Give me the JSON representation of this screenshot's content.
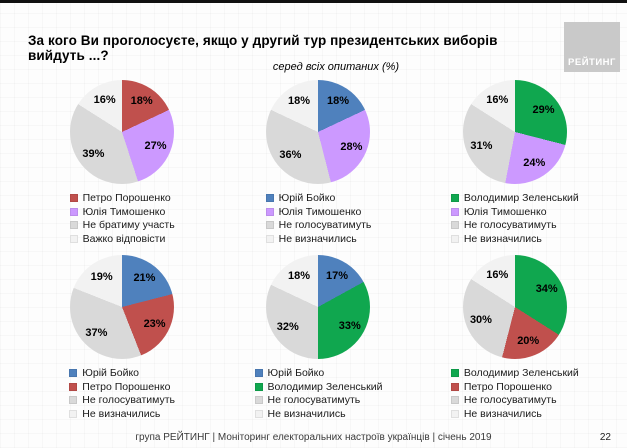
{
  "title": "За кого Ви проголосуєте, якщо у другий тур президентських виборів вийдуть ...?",
  "subtitle": "серед всіх опитаних (%)",
  "logo_text": "РЕЙТИНГ",
  "footer": {
    "left": "група РЕЙТИНГ |  Моніторинг електоральних настроїв українців  |  січень  2019",
    "page": "22"
  },
  "colors": {
    "poroshenko_red": "#C0504D",
    "tymoshenko_purple": "#CC99FF",
    "boyko_blue": "#4F81BD",
    "zelensky_green": "#10A74F",
    "no_vote_gray": "#D9D9D9",
    "undecided_light_gray": "#F2F2F2"
  },
  "chart_data": [
    {
      "type": "pie",
      "legend_position": "bottom",
      "slices": [
        {
          "label": "Петро Порошенко",
          "value": 18,
          "color": "#C0504D"
        },
        {
          "label": "Юлія Тимошенко",
          "value": 27,
          "color": "#CC99FF"
        },
        {
          "label": "Не братиму участь",
          "value": 39,
          "color": "#D9D9D9"
        },
        {
          "label": "Важко відповісти",
          "value": 16,
          "color": "#F2F2F2"
        }
      ]
    },
    {
      "type": "pie",
      "legend_position": "bottom",
      "slices": [
        {
          "label": "Юрій Бойко",
          "value": 18,
          "color": "#4F81BD"
        },
        {
          "label": "Юлія Тимошенко",
          "value": 28,
          "color": "#CC99FF"
        },
        {
          "label": "Не голосуватимуть",
          "value": 36,
          "color": "#D9D9D9"
        },
        {
          "label": "Не визначились",
          "value": 18,
          "color": "#F2F2F2"
        }
      ]
    },
    {
      "type": "pie",
      "legend_position": "bottom",
      "slices": [
        {
          "label": "Володимир Зеленський",
          "value": 29,
          "color": "#10A74F"
        },
        {
          "label": "Юлія Тимошенко",
          "value": 24,
          "color": "#CC99FF"
        },
        {
          "label": "Не голосуватимуть",
          "value": 31,
          "color": "#D9D9D9"
        },
        {
          "label": "Не визначились",
          "value": 16,
          "color": "#F2F2F2"
        }
      ]
    },
    {
      "type": "pie",
      "legend_position": "bottom",
      "slices": [
        {
          "label": "Юрій Бойко",
          "value": 21,
          "color": "#4F81BD"
        },
        {
          "label": "Петро Порошенко",
          "value": 23,
          "color": "#C0504D"
        },
        {
          "label": "Не голосуватимуть",
          "value": 37,
          "color": "#D9D9D9"
        },
        {
          "label": "Не визначились",
          "value": 19,
          "color": "#F2F2F2"
        }
      ]
    },
    {
      "type": "pie",
      "legend_position": "bottom",
      "slices": [
        {
          "label": "Юрій Бойко",
          "value": 17,
          "color": "#4F81BD"
        },
        {
          "label": "Володимир Зеленський",
          "value": 33,
          "color": "#10A74F"
        },
        {
          "label": "Не голосуватимуть",
          "value": 32,
          "color": "#D9D9D9"
        },
        {
          "label": "Не визначились",
          "value": 18,
          "color": "#F2F2F2"
        }
      ]
    },
    {
      "type": "pie",
      "legend_position": "bottom",
      "slices": [
        {
          "label": "Володимир Зеленський",
          "value": 34,
          "color": "#10A74F"
        },
        {
          "label": "Петро Порошенко",
          "value": 20,
          "color": "#C0504D"
        },
        {
          "label": "Не голосуватимуть",
          "value": 30,
          "color": "#D9D9D9"
        },
        {
          "label": "Не визначились",
          "value": 16,
          "color": "#F2F2F2"
        }
      ]
    }
  ]
}
